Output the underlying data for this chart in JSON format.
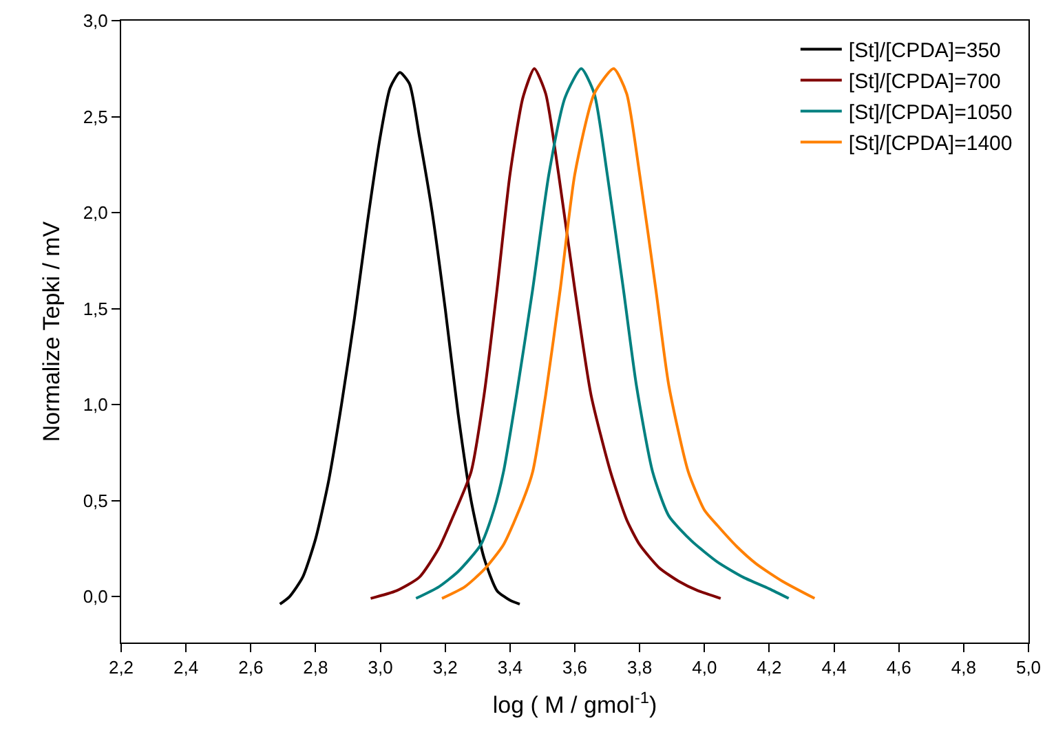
{
  "chart_data": {
    "type": "line",
    "xlabel": "log ( M / gmol$^{-1}$)",
    "ylabel": "Normalize Tepki / mV",
    "xlim": [
      2.2,
      5.0
    ],
    "ylim": [
      -0.24,
      3.0
    ],
    "xticks": [
      {
        "value": 2.2,
        "label": "2,2"
      },
      {
        "value": 2.4,
        "label": "2,4"
      },
      {
        "value": 2.6,
        "label": "2,6"
      },
      {
        "value": 2.8,
        "label": "2,8"
      },
      {
        "value": 3.0,
        "label": "3,0"
      },
      {
        "value": 3.2,
        "label": "3,2"
      },
      {
        "value": 3.4,
        "label": "3,4"
      },
      {
        "value": 3.6,
        "label": "3,6"
      },
      {
        "value": 3.8,
        "label": "3,8"
      },
      {
        "value": 4.0,
        "label": "4,0"
      },
      {
        "value": 4.2,
        "label": "4,2"
      },
      {
        "value": 4.4,
        "label": "4,4"
      },
      {
        "value": 4.6,
        "label": "4,6"
      },
      {
        "value": 4.8,
        "label": "4,8"
      },
      {
        "value": 5.0,
        "label": "5,0"
      }
    ],
    "yticks": [
      {
        "value": 0,
        "label": "0,0"
      },
      {
        "value": 0.5,
        "label": "0,5"
      },
      {
        "value": 1.0,
        "label": "1,0"
      },
      {
        "value": 1.5,
        "label": "1,5"
      },
      {
        "value": 2.0,
        "label": "2,0"
      },
      {
        "value": 2.5,
        "label": "2,5"
      },
      {
        "value": 3.0,
        "label": "3,0"
      }
    ],
    "grid": false,
    "legend": "top right",
    "marker": "none",
    "line_style": "solid",
    "series": [
      {
        "name": "[St]/[CPDA]=350",
        "color": "#000000",
        "x": [
          2.69,
          2.72,
          2.76,
          2.8,
          2.84,
          2.88,
          2.92,
          2.96,
          3.0,
          3.03,
          3.06,
          3.09,
          3.12,
          3.16,
          3.2,
          3.24,
          3.28,
          3.32,
          3.36,
          3.4,
          3.43
        ],
        "values": [
          -0.04,
          0.0,
          0.1,
          0.3,
          0.6,
          1.0,
          1.45,
          1.95,
          2.4,
          2.65,
          2.73,
          2.67,
          2.4,
          2.0,
          1.5,
          0.95,
          0.5,
          0.2,
          0.03,
          -0.02,
          -0.04
        ]
      },
      {
        "name": "[St]/[CPDA]=700",
        "color": "#800000",
        "x": [
          2.97,
          3.05,
          3.12,
          3.18,
          3.22,
          3.28,
          3.32,
          3.36,
          3.4,
          3.44,
          3.475,
          3.51,
          3.55,
          3.6,
          3.65,
          3.71,
          3.76,
          3.8,
          3.86,
          3.92,
          3.98,
          4.05
        ],
        "values": [
          -0.01,
          0.03,
          0.1,
          0.25,
          0.4,
          0.65,
          1.05,
          1.6,
          2.2,
          2.6,
          2.75,
          2.62,
          2.2,
          1.6,
          1.05,
          0.65,
          0.4,
          0.27,
          0.15,
          0.08,
          0.03,
          -0.01
        ]
      },
      {
        "name": "[St]/[CPDA]=1050",
        "color": "#008080",
        "x": [
          3.11,
          3.18,
          3.24,
          3.31,
          3.35,
          3.38,
          3.42,
          3.47,
          3.52,
          3.57,
          3.62,
          3.66,
          3.7,
          3.75,
          3.79,
          3.84,
          3.89,
          3.96,
          4.04,
          4.12,
          4.2,
          4.26
        ],
        "values": [
          -0.01,
          0.05,
          0.13,
          0.27,
          0.45,
          0.65,
          1.05,
          1.6,
          2.2,
          2.6,
          2.75,
          2.62,
          2.2,
          1.6,
          1.1,
          0.65,
          0.42,
          0.29,
          0.18,
          0.1,
          0.04,
          -0.01
        ]
      },
      {
        "name": "[St]/[CPDA]=1400",
        "color": "#ff8000",
        "x": [
          3.19,
          3.26,
          3.32,
          3.38,
          3.44,
          3.47,
          3.51,
          3.555,
          3.6,
          3.66,
          3.72,
          3.76,
          3.8,
          3.85,
          3.89,
          3.95,
          4.0,
          4.04,
          4.1,
          4.16,
          4.24,
          4.34
        ],
        "values": [
          -0.01,
          0.05,
          0.14,
          0.27,
          0.5,
          0.65,
          1.05,
          1.6,
          2.2,
          2.62,
          2.75,
          2.62,
          2.2,
          1.6,
          1.1,
          0.65,
          0.45,
          0.37,
          0.26,
          0.17,
          0.08,
          -0.01
        ]
      }
    ]
  }
}
